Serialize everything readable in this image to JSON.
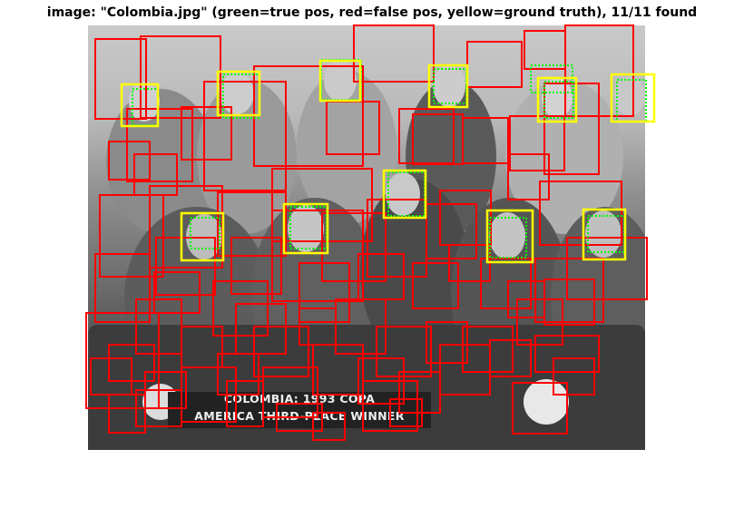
{
  "figure": {
    "title": "image: \"Colombia.jpg\" (green=true pos, red=false pos, yellow=ground truth), 11/11 found"
  },
  "photo": {
    "caption_lines": [
      "COLOMBIA: 1993 COPA",
      "AMERICA THIRD-PLACE WINNER"
    ]
  },
  "colors": {
    "true_positive": "#00ff00",
    "false_positive": "#ff0000",
    "ground_truth": "#ffff00"
  }
}
